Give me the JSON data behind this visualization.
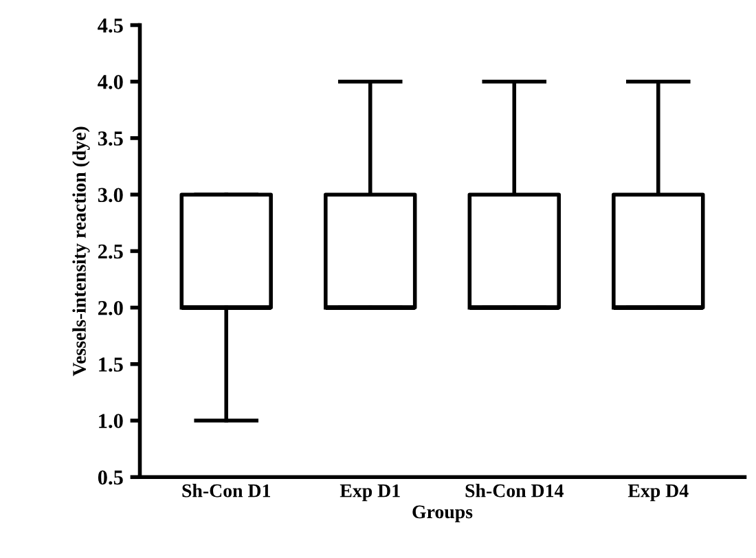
{
  "chart_data": {
    "type": "box",
    "xlabel": "Groups",
    "ylabel": "Vessels-intensity reaction (dye)",
    "categories": [
      "Sh-Con D1",
      "Exp D1",
      "Sh-Con D14",
      "Exp D4"
    ],
    "boxes": [
      {
        "low": 1.0,
        "q1": 2.0,
        "median": 2.0,
        "q3": 3.0,
        "high": 3.0
      },
      {
        "low": 2.0,
        "q1": 2.0,
        "median": 2.0,
        "q3": 3.0,
        "high": 4.0
      },
      {
        "low": 2.0,
        "q1": 2.0,
        "median": 2.0,
        "q3": 3.0,
        "high": 4.0
      },
      {
        "low": 2.0,
        "q1": 2.0,
        "median": 2.0,
        "q3": 3.0,
        "high": 4.0
      }
    ],
    "ylim": [
      0.5,
      4.5
    ],
    "yticks": [
      0.5,
      {
        "value": 1,
        "label": "1.0"
      },
      1.5,
      {
        "value": 2,
        "label": "2.0"
      },
      2.5,
      {
        "value": 3,
        "label": "3.0"
      },
      3.5,
      {
        "value": 4,
        "label": "4.0"
      },
      4.5
    ],
    "grid": false,
    "legend": false
  }
}
